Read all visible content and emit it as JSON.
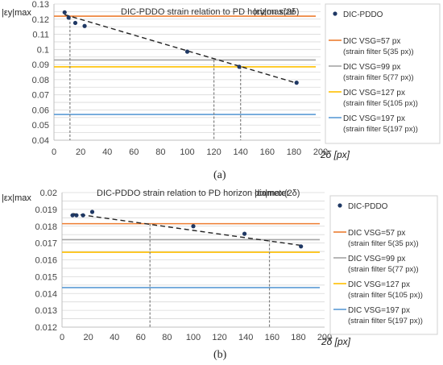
{
  "colors": {
    "orange": "#ED7D31",
    "gray": "#A5A5A5",
    "yellow": "#FFC000",
    "blue": "#5B9BD5",
    "point": "#1F3864",
    "trend": "#222222",
    "drop": "#7F7F7F",
    "grid": "#D9D9D9",
    "axis": "#BFBFBF",
    "legend_border": "#D0D0D0"
  },
  "chart_data": [
    {
      "type": "scatter",
      "title": "DIC-PDDO strain relation to PD horizon size",
      "title_suffix": "|εy|max(2δ)",
      "ylabel": "|εy|max",
      "xlabel": "2δ [px]",
      "xlim": [
        0,
        200
      ],
      "ylim": [
        0.04,
        0.13
      ],
      "xticks": [
        "0",
        "20",
        "40",
        "60",
        "80",
        "100",
        "120",
        "140",
        "160",
        "180",
        "200"
      ],
      "yticks": [
        "0.04",
        "0.05",
        "0.06",
        "0.07",
        "0.08",
        "0.09",
        "0.1",
        "0.11",
        "0.12",
        "0.13"
      ],
      "grid": true,
      "legend_position": "right",
      "points": {
        "name": "DIC-PDDO",
        "x": [
          8,
          11,
          16,
          23,
          100,
          139,
          182
        ],
        "y": [
          0.1245,
          0.121,
          0.1175,
          0.1155,
          0.0985,
          0.0885,
          0.078
        ]
      },
      "trendline": {
        "x": [
          8,
          183
        ],
        "y": [
          0.123,
          0.0775
        ]
      },
      "hlines": [
        {
          "name": "DIC VSG=57 px",
          "sub": "(strain filter 5(35 px))",
          "y": 0.122,
          "color_key": "orange"
        },
        {
          "name": "DIC VSG=99 px",
          "sub": "(strain filter 5(77 px))",
          "y": 0.093,
          "color_key": "gray"
        },
        {
          "name": "DIC VSG=127 px",
          "sub": "(strain filter 5(105 px))",
          "y": 0.0885,
          "color_key": "yellow"
        },
        {
          "name": "DIC VSG=197 px",
          "sub": "(strain filter 5(197 px))",
          "y": 0.057,
          "color_key": "blue"
        }
      ],
      "droplines": [
        {
          "x": 12,
          "y": 0.121
        },
        {
          "x": 120,
          "y": 0.093
        },
        {
          "x": 140,
          "y": 0.0885
        }
      ]
    },
    {
      "type": "scatter",
      "title": "DIC-PDDO strain relation to PD horizon diameter",
      "title_suffix": "|εx|max(2δ)",
      "ylabel": "|εx|max",
      "xlabel": "2δ [px]",
      "xlim": [
        0,
        200
      ],
      "ylim": [
        0.012,
        0.02
      ],
      "xticks": [
        "0",
        "20",
        "40",
        "60",
        "80",
        "100",
        "120",
        "140",
        "160",
        "180",
        "200"
      ],
      "yticks": [
        "0.012",
        "0.013",
        "0.014",
        "0.015",
        "0.016",
        "0.017",
        "0.018",
        "0.019",
        "0.02"
      ],
      "grid": true,
      "legend_position": "right",
      "points": {
        "name": "DIC-PDDO",
        "x": [
          8,
          11,
          16,
          23,
          100,
          139,
          182
        ],
        "y": [
          0.01865,
          0.01865,
          0.01865,
          0.01885,
          0.018,
          0.01755,
          0.0168
        ]
      },
      "trendline": {
        "x": [
          8,
          183
        ],
        "y": [
          0.01875,
          0.01685
        ]
      },
      "hlines": [
        {
          "name": "DIC VSG=57 px",
          "sub": "(strain filter 5(35 px))",
          "y": 0.01815,
          "color_key": "orange"
        },
        {
          "name": "DIC VSG=99 px",
          "sub": "(strain filter 5(77 px))",
          "y": 0.0172,
          "color_key": "gray"
        },
        {
          "name": "DIC VSG=127 px",
          "sub": "(strain filter 5(105 px))",
          "y": 0.01645,
          "color_key": "yellow"
        },
        {
          "name": "DIC VSG=197 px",
          "sub": "(strain filter 5(197 px))",
          "y": 0.01435,
          "color_key": "blue"
        }
      ],
      "droplines": [
        {
          "x": 67,
          "y": 0.01815
        },
        {
          "x": 158,
          "y": 0.0172
        }
      ]
    }
  ],
  "sublabels": {
    "a": "(a)",
    "b": "(b)"
  }
}
